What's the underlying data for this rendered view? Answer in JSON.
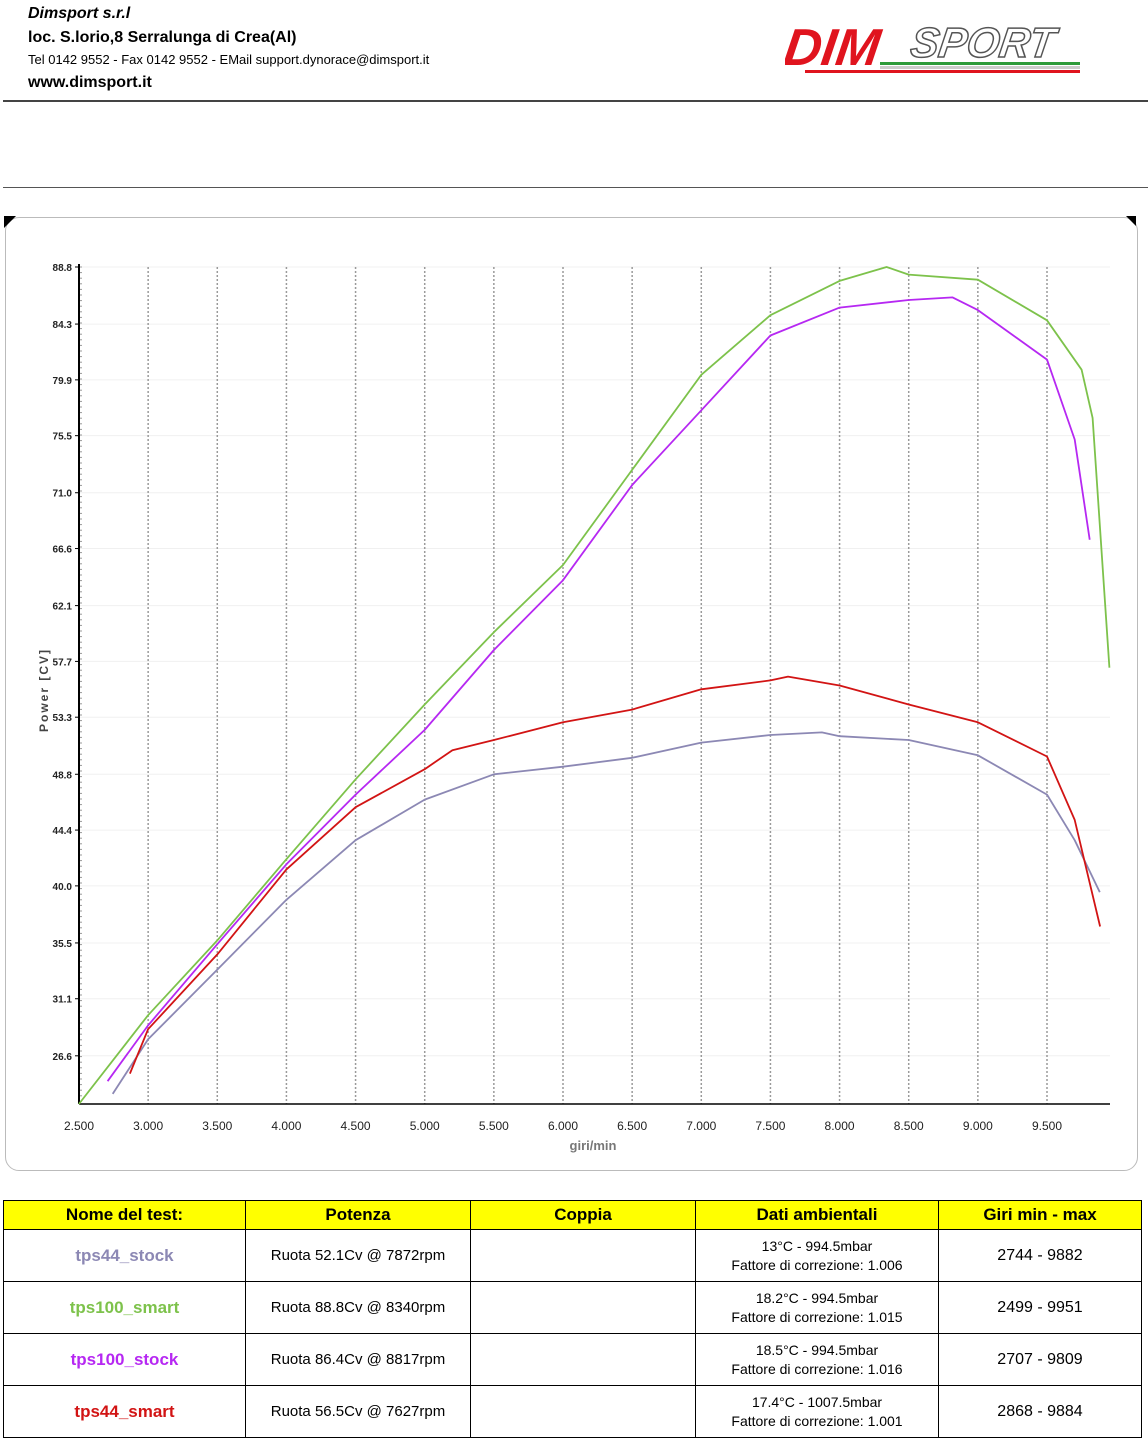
{
  "header": {
    "company": "Dimsport s.r.l",
    "address": "loc. S.lorio,8 Serralunga di Crea(Al)",
    "contacts": "Tel 0142 9552 - Fax 0142 9552 - EMail support.dynorace@dimsport.it",
    "website": "www.dimsport.it",
    "logo_text": "DIMSPORT"
  },
  "colors": {
    "tps44_stock": "#8c88b4",
    "tps100_smart": "#7dc24b",
    "tps100_stock": "#b628f2",
    "tps44_smart": "#d21414",
    "table_header": "#ffff00"
  },
  "chart_data": {
    "type": "line",
    "title": "",
    "xlabel": "giri/min",
    "ylabel": "Power [CV]",
    "xlim": [
      2500,
      9955
    ],
    "ylim": [
      22.8,
      88.8
    ],
    "x_ticks": [
      2500,
      3000,
      3500,
      4000,
      4500,
      5000,
      5500,
      6000,
      6500,
      7000,
      7500,
      8000,
      8500,
      9000,
      9500
    ],
    "x_tick_labels": [
      "2.500",
      "3.000",
      "3.500",
      "4.000",
      "4.500",
      "5.000",
      "5.500",
      "6.000",
      "6.500",
      "7.000",
      "7.500",
      "8.000",
      "8.500",
      "9.000",
      "9.500"
    ],
    "y_ticks": [
      26.6,
      31.1,
      35.5,
      40.0,
      44.4,
      48.8,
      53.3,
      57.7,
      62.1,
      66.6,
      71.0,
      75.5,
      79.9,
      84.3,
      88.8
    ],
    "y_tick_labels": [
      "26.6",
      "31.1",
      "35.5",
      "40.0",
      "44.4",
      "48.8",
      "53.3",
      "57.7",
      "62.1",
      "66.6",
      "71.0",
      "75.5",
      "79.9",
      "84.3",
      "88.8"
    ],
    "grid": "vertical dashed",
    "series": [
      {
        "name": "tps44_stock",
        "x": [
          2744,
          3000,
          3500,
          4000,
          4500,
          5000,
          5500,
          6000,
          6500,
          7000,
          7500,
          7872,
          8000,
          8500,
          9000,
          9500,
          9700,
          9882
        ],
        "y": [
          23.6,
          27.9,
          33.4,
          38.9,
          43.6,
          46.8,
          48.8,
          49.4,
          50.1,
          51.3,
          51.9,
          52.1,
          51.8,
          51.5,
          50.3,
          47.2,
          43.6,
          39.5
        ]
      },
      {
        "name": "tps100_smart",
        "x": [
          2499,
          3000,
          3500,
          4000,
          4500,
          5000,
          5500,
          6000,
          6500,
          7000,
          7500,
          8000,
          8340,
          8500,
          9000,
          9500,
          9750,
          9830,
          9951
        ],
        "y": [
          22.8,
          29.8,
          35.7,
          42.1,
          48.4,
          54.3,
          60.0,
          65.3,
          72.8,
          80.3,
          85.0,
          87.7,
          88.8,
          88.2,
          87.8,
          84.6,
          80.7,
          76.9,
          57.2
        ]
      },
      {
        "name": "tps100_stock",
        "x": [
          2707,
          3000,
          3500,
          4000,
          4500,
          5000,
          5500,
          6000,
          6500,
          7000,
          7500,
          8000,
          8500,
          8817,
          9000,
          9500,
          9700,
          9809
        ],
        "y": [
          24.6,
          29.0,
          35.4,
          41.7,
          47.2,
          52.3,
          58.6,
          64.1,
          71.6,
          77.5,
          83.4,
          85.6,
          86.2,
          86.4,
          85.4,
          81.5,
          75.2,
          67.3
        ]
      },
      {
        "name": "tps44_smart",
        "x": [
          2868,
          3000,
          3500,
          4000,
          4500,
          5000,
          5200,
          5500,
          6000,
          6500,
          7000,
          7500,
          7627,
          8000,
          8500,
          9000,
          9500,
          9700,
          9884
        ],
        "y": [
          25.2,
          28.7,
          34.6,
          41.3,
          46.2,
          49.2,
          50.7,
          51.5,
          52.9,
          53.9,
          55.5,
          56.2,
          56.5,
          55.8,
          54.3,
          52.9,
          50.2,
          45.2,
          36.8
        ]
      }
    ]
  },
  "table": {
    "headers": [
      "Nome del test:",
      "Potenza",
      "Coppia",
      "Dati ambientali",
      "Giri min - max"
    ],
    "rows": [
      {
        "name": "tps44_stock",
        "potenza": "Ruota 52.1Cv @ 7872rpm",
        "coppia": "",
        "amb1": "13°C - 994.5mbar",
        "amb2": "Fattore di correzione: 1.006",
        "giri": "2744 - 9882"
      },
      {
        "name": "tps100_smart",
        "potenza": "Ruota 88.8Cv @ 8340rpm",
        "coppia": "",
        "amb1": "18.2°C - 994.5mbar",
        "amb2": "Fattore di correzione: 1.015",
        "giri": "2499 - 9951"
      },
      {
        "name": "tps100_stock",
        "potenza": "Ruota 86.4Cv @ 8817rpm",
        "coppia": "",
        "amb1": "18.5°C - 994.5mbar",
        "amb2": "Fattore di correzione: 1.016",
        "giri": "2707 - 9809"
      },
      {
        "name": "tps44_smart",
        "potenza": "Ruota 56.5Cv @ 7627rpm",
        "coppia": "",
        "amb1": "17.4°C - 1007.5mbar",
        "amb2": "Fattore di correzione: 1.001",
        "giri": "2868 - 9884"
      }
    ]
  }
}
